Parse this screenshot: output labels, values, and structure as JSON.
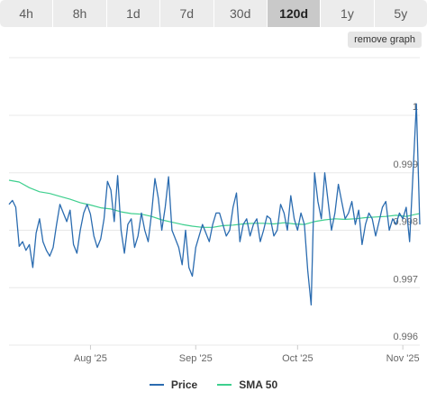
{
  "tabs": [
    {
      "label": "4h",
      "active": false
    },
    {
      "label": "8h",
      "active": false
    },
    {
      "label": "1d",
      "active": false
    },
    {
      "label": "7d",
      "active": false
    },
    {
      "label": "30d",
      "active": false
    },
    {
      "label": "120d",
      "active": true
    },
    {
      "label": "1y",
      "active": false
    },
    {
      "label": "5y",
      "active": false
    }
  ],
  "remove_graph_label": "remove graph",
  "colors": {
    "price": "#2b6cb0",
    "sma": "#3ecf8e",
    "grid": "#e8e8e8",
    "axis_text": "#666666"
  },
  "chart_data": {
    "type": "line",
    "title": "",
    "xlabel": "",
    "ylabel": "",
    "ylim": [
      0.996,
      1.0
    ],
    "y_ticks": [
      {
        "value": 1.0,
        "label": "1"
      },
      {
        "value": 0.999,
        "label": "0.999"
      },
      {
        "value": 0.998,
        "label": "0.998"
      },
      {
        "value": 0.997,
        "label": "0.997"
      },
      {
        "value": 0.996,
        "label": "0.996"
      }
    ],
    "x_ticks": [
      {
        "date": "2025-08-01",
        "label": "Aug '25"
      },
      {
        "date": "2025-09-01",
        "label": "Sep '25"
      },
      {
        "date": "2025-10-01",
        "label": "Oct '25"
      },
      {
        "date": "2025-11-01",
        "label": "Nov '25"
      }
    ],
    "x_start": "2025-07-08",
    "x_end": "2025-11-06",
    "grid": true,
    "legend_position": "bottom",
    "series": [
      {
        "name": "Price",
        "color": "#2b6cb0",
        "points": [
          [
            "2025-07-08",
            0.99845
          ],
          [
            "2025-07-09",
            0.99852
          ],
          [
            "2025-07-10",
            0.9984
          ],
          [
            "2025-07-11",
            0.99772
          ],
          [
            "2025-07-12",
            0.9978
          ],
          [
            "2025-07-13",
            0.99765
          ],
          [
            "2025-07-14",
            0.99775
          ],
          [
            "2025-07-15",
            0.99735
          ],
          [
            "2025-07-16",
            0.99795
          ],
          [
            "2025-07-17",
            0.9982
          ],
          [
            "2025-07-18",
            0.9978
          ],
          [
            "2025-07-19",
            0.99765
          ],
          [
            "2025-07-20",
            0.99755
          ],
          [
            "2025-07-21",
            0.9977
          ],
          [
            "2025-07-22",
            0.9981
          ],
          [
            "2025-07-23",
            0.99845
          ],
          [
            "2025-07-24",
            0.9983
          ],
          [
            "2025-07-25",
            0.99815
          ],
          [
            "2025-07-26",
            0.99835
          ],
          [
            "2025-07-27",
            0.99775
          ],
          [
            "2025-07-28",
            0.9976
          ],
          [
            "2025-07-29",
            0.998
          ],
          [
            "2025-07-30",
            0.9983
          ],
          [
            "2025-07-31",
            0.99845
          ],
          [
            "2025-08-01",
            0.99828
          ],
          [
            "2025-08-02",
            0.9979
          ],
          [
            "2025-08-03",
            0.9977
          ],
          [
            "2025-08-04",
            0.99785
          ],
          [
            "2025-08-05",
            0.9982
          ],
          [
            "2025-08-06",
            0.99885
          ],
          [
            "2025-08-07",
            0.9987
          ],
          [
            "2025-08-08",
            0.99815
          ],
          [
            "2025-08-09",
            0.99895
          ],
          [
            "2025-08-10",
            0.998
          ],
          [
            "2025-08-11",
            0.9976
          ],
          [
            "2025-08-12",
            0.9981
          ],
          [
            "2025-08-13",
            0.9982
          ],
          [
            "2025-08-14",
            0.9977
          ],
          [
            "2025-08-15",
            0.9979
          ],
          [
            "2025-08-16",
            0.9983
          ],
          [
            "2025-08-17",
            0.998
          ],
          [
            "2025-08-18",
            0.9978
          ],
          [
            "2025-08-19",
            0.9983
          ],
          [
            "2025-08-20",
            0.9989
          ],
          [
            "2025-08-21",
            0.99855
          ],
          [
            "2025-08-22",
            0.998
          ],
          [
            "2025-08-23",
            0.9984
          ],
          [
            "2025-08-24",
            0.99893
          ],
          [
            "2025-08-25",
            0.998
          ],
          [
            "2025-08-26",
            0.99785
          ],
          [
            "2025-08-27",
            0.9977
          ],
          [
            "2025-08-28",
            0.9974
          ],
          [
            "2025-08-29",
            0.998
          ],
          [
            "2025-08-30",
            0.99735
          ],
          [
            "2025-08-31",
            0.9972
          ],
          [
            "2025-09-01",
            0.9977
          ],
          [
            "2025-09-02",
            0.9979
          ],
          [
            "2025-09-03",
            0.9981
          ],
          [
            "2025-09-04",
            0.99795
          ],
          [
            "2025-09-05",
            0.9978
          ],
          [
            "2025-09-06",
            0.9981
          ],
          [
            "2025-09-07",
            0.9983
          ],
          [
            "2025-09-08",
            0.9983
          ],
          [
            "2025-09-09",
            0.9981
          ],
          [
            "2025-09-10",
            0.9979
          ],
          [
            "2025-09-11",
            0.998
          ],
          [
            "2025-09-12",
            0.9984
          ],
          [
            "2025-09-13",
            0.99865
          ],
          [
            "2025-09-14",
            0.9978
          ],
          [
            "2025-09-15",
            0.9981
          ],
          [
            "2025-09-16",
            0.9982
          ],
          [
            "2025-09-17",
            0.9979
          ],
          [
            "2025-09-18",
            0.9981
          ],
          [
            "2025-09-19",
            0.9982
          ],
          [
            "2025-09-20",
            0.9978
          ],
          [
            "2025-09-21",
            0.998
          ],
          [
            "2025-09-22",
            0.99825
          ],
          [
            "2025-09-23",
            0.9982
          ],
          [
            "2025-09-24",
            0.9979
          ],
          [
            "2025-09-25",
            0.998
          ],
          [
            "2025-09-26",
            0.99845
          ],
          [
            "2025-09-27",
            0.9983
          ],
          [
            "2025-09-28",
            0.998
          ],
          [
            "2025-09-29",
            0.9986
          ],
          [
            "2025-09-30",
            0.9982
          ],
          [
            "2025-10-01",
            0.998
          ],
          [
            "2025-10-02",
            0.9983
          ],
          [
            "2025-10-03",
            0.9981
          ],
          [
            "2025-10-04",
            0.9973
          ],
          [
            "2025-10-05",
            0.9967
          ],
          [
            "2025-10-06",
            0.999
          ],
          [
            "2025-10-07",
            0.9985
          ],
          [
            "2025-10-08",
            0.9982
          ],
          [
            "2025-10-09",
            0.999
          ],
          [
            "2025-10-10",
            0.9985
          ],
          [
            "2025-10-11",
            0.998
          ],
          [
            "2025-10-12",
            0.9983
          ],
          [
            "2025-10-13",
            0.9988
          ],
          [
            "2025-10-14",
            0.9985
          ],
          [
            "2025-10-15",
            0.9982
          ],
          [
            "2025-10-16",
            0.9983
          ],
          [
            "2025-10-17",
            0.9985
          ],
          [
            "2025-10-18",
            0.9981
          ],
          [
            "2025-10-19",
            0.99835
          ],
          [
            "2025-10-20",
            0.99775
          ],
          [
            "2025-10-21",
            0.9981
          ],
          [
            "2025-10-22",
            0.9983
          ],
          [
            "2025-10-23",
            0.9982
          ],
          [
            "2025-10-24",
            0.9979
          ],
          [
            "2025-10-25",
            0.99815
          ],
          [
            "2025-10-26",
            0.9984
          ],
          [
            "2025-10-27",
            0.9985
          ],
          [
            "2025-10-28",
            0.998
          ],
          [
            "2025-10-29",
            0.9982
          ],
          [
            "2025-10-30",
            0.9981
          ],
          [
            "2025-10-31",
            0.9983
          ],
          [
            "2025-11-01",
            0.9982
          ],
          [
            "2025-11-02",
            0.9984
          ],
          [
            "2025-11-03",
            0.9978
          ],
          [
            "2025-11-04",
            0.999
          ],
          [
            "2025-11-05",
            1.0002
          ],
          [
            "2025-11-06",
            0.9981
          ]
        ]
      },
      {
        "name": "SMA 50",
        "color": "#3ecf8e",
        "points": [
          [
            "2025-07-08",
            0.99887
          ],
          [
            "2025-07-11",
            0.99884
          ],
          [
            "2025-07-14",
            0.99874
          ],
          [
            "2025-07-17",
            0.99867
          ],
          [
            "2025-07-20",
            0.99864
          ],
          [
            "2025-07-23",
            0.99859
          ],
          [
            "2025-07-26",
            0.99854
          ],
          [
            "2025-07-29",
            0.99848
          ],
          [
            "2025-08-01",
            0.99844
          ],
          [
            "2025-08-04",
            0.99839
          ],
          [
            "2025-08-07",
            0.99837
          ],
          [
            "2025-08-10",
            0.99832
          ],
          [
            "2025-08-13",
            0.99829
          ],
          [
            "2025-08-16",
            0.99828
          ],
          [
            "2025-08-19",
            0.99824
          ],
          [
            "2025-08-22",
            0.99818
          ],
          [
            "2025-08-25",
            0.99814
          ],
          [
            "2025-08-28",
            0.9981
          ],
          [
            "2025-08-31",
            0.99807
          ],
          [
            "2025-09-03",
            0.99805
          ],
          [
            "2025-09-06",
            0.99805
          ],
          [
            "2025-09-09",
            0.99808
          ],
          [
            "2025-09-12",
            0.99809
          ],
          [
            "2025-09-15",
            0.99811
          ],
          [
            "2025-09-18",
            0.99812
          ],
          [
            "2025-09-21",
            0.99812
          ],
          [
            "2025-09-24",
            0.99811
          ],
          [
            "2025-09-27",
            0.99813
          ],
          [
            "2025-09-30",
            0.99811
          ],
          [
            "2025-10-03",
            0.9981
          ],
          [
            "2025-10-06",
            0.99815
          ],
          [
            "2025-10-09",
            0.99818
          ],
          [
            "2025-10-12",
            0.9982
          ],
          [
            "2025-10-15",
            0.99819
          ],
          [
            "2025-10-18",
            0.9982
          ],
          [
            "2025-10-21",
            0.99822
          ],
          [
            "2025-10-24",
            0.99823
          ],
          [
            "2025-10-27",
            0.99824
          ],
          [
            "2025-10-30",
            0.99826
          ],
          [
            "2025-11-02",
            0.99824
          ],
          [
            "2025-11-05",
            0.99828
          ],
          [
            "2025-11-06",
            0.99829
          ]
        ]
      }
    ]
  }
}
